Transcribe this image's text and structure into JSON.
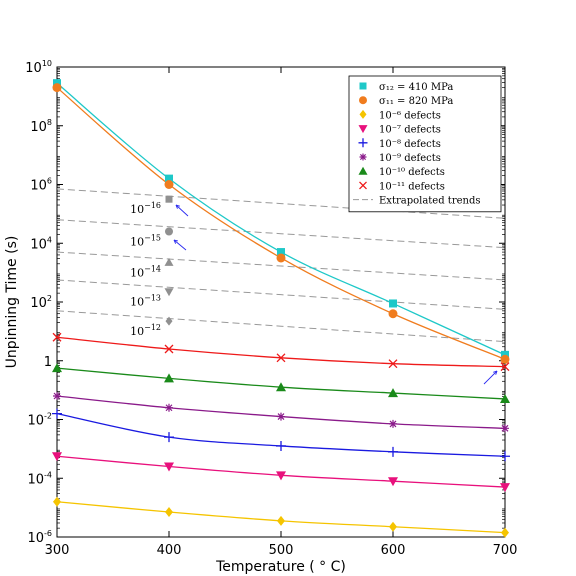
{
  "chart_data": {
    "type": "line",
    "title": "",
    "xlabel": "Temperature ( ° C)",
    "ylabel": "Unpinning Time (s)",
    "xlim": [
      300,
      700
    ],
    "ylim_log10": [
      -6,
      10
    ],
    "y_scale": "log",
    "x_ticks": [
      "300",
      "400",
      "500",
      "600",
      "700"
    ],
    "y_tick_exponents": [
      -6,
      -4,
      -2,
      0,
      2,
      4,
      6,
      8,
      10
    ],
    "y_tick_special": {
      "0": "1"
    },
    "legend_placement": "top-right",
    "colors": {
      "s12": "#1ec8c8",
      "s11": "#f07c1e",
      "d6": "#f5c400",
      "d7": "#e8107c",
      "d8": "#1a1ae0",
      "d9": "#8a1a8a",
      "d10": "#1a8a1a",
      "d11": "#ee1a1a",
      "extrap": "#999999",
      "annot_marker": "#909090",
      "arrow": "#2a2af0"
    },
    "series": [
      {
        "key": "s12",
        "name": "σ₁₂ = 410 MPa",
        "marker": "square",
        "x": [
          300,
          400,
          500,
          600,
          700
        ],
        "log10y": [
          9.45,
          6.2,
          3.7,
          1.95,
          0.2
        ]
      },
      {
        "key": "s11",
        "name": "σ₁₁ = 820 MPa",
        "marker": "circle",
        "x": [
          300,
          400,
          500,
          600,
          700
        ],
        "log10y": [
          9.3,
          6.0,
          3.5,
          1.6,
          0.05
        ]
      },
      {
        "key": "d6",
        "name": "10⁻⁶ defects",
        "marker": "diamond",
        "x": [
          300,
          400,
          500,
          600,
          700
        ],
        "log10y": [
          -4.8,
          -5.15,
          -5.45,
          -5.65,
          -5.85
        ]
      },
      {
        "key": "d7",
        "name": "10⁻⁷ defects",
        "marker": "tri-down",
        "x": [
          300,
          400,
          500,
          600,
          700
        ],
        "log10y": [
          -3.25,
          -3.6,
          -3.9,
          -4.1,
          -4.3
        ]
      },
      {
        "key": "d8",
        "name": "10⁻⁸ defects",
        "marker": "plus",
        "x": [
          300,
          400,
          500,
          600,
          700
        ],
        "log10y": [
          -1.8,
          -2.6,
          -2.9,
          -3.1,
          -3.25
        ]
      },
      {
        "key": "d9",
        "name": "10⁻⁹ defects",
        "marker": "star",
        "x": [
          300,
          400,
          500,
          600,
          700
        ],
        "log10y": [
          -1.2,
          -1.6,
          -1.9,
          -2.15,
          -2.3
        ]
      },
      {
        "key": "d10",
        "name": "10⁻¹⁰ defects",
        "marker": "tri-up",
        "x": [
          300,
          400,
          500,
          600,
          700
        ],
        "log10y": [
          -0.25,
          -0.6,
          -0.9,
          -1.1,
          -1.3
        ]
      },
      {
        "key": "d11",
        "name": "10⁻¹¹ defects",
        "marker": "x",
        "x": [
          300,
          400,
          500,
          600,
          700
        ],
        "log10y": [
          0.8,
          0.4,
          0.1,
          -0.1,
          -0.2
        ]
      },
      {
        "key": "extrap",
        "name": "Extrapolated trends",
        "marker": "dash",
        "x": [],
        "log10y": []
      }
    ],
    "extrapolated_trends": [
      {
        "x": [
          300,
          700
        ],
        "log10y": [
          5.85,
          4.85
        ]
      },
      {
        "x": [
          300,
          700
        ],
        "log10y": [
          4.8,
          3.85
        ]
      },
      {
        "x": [
          300,
          700
        ],
        "log10y": [
          3.7,
          2.75
        ]
      },
      {
        "x": [
          300,
          700
        ],
        "log10y": [
          2.75,
          1.75
        ]
      },
      {
        "x": [
          300,
          700
        ],
        "log10y": [
          1.7,
          0.65
        ]
      }
    ],
    "annotations": [
      {
        "base": "10",
        "exp": "−16",
        "marker": "square",
        "x": 400,
        "log10y": 5.5
      },
      {
        "base": "10",
        "exp": "−15",
        "marker": "circle",
        "x": 400,
        "log10y": 4.4
      },
      {
        "base": "10",
        "exp": "−14",
        "marker": "tri-up",
        "x": 400,
        "log10y": 3.35
      },
      {
        "base": "10",
        "exp": "−13",
        "marker": "tri-down",
        "x": 400,
        "log10y": 2.35
      },
      {
        "base": "10",
        "exp": "−12",
        "marker": "diamond",
        "x": 400,
        "log10y": 1.35
      }
    ]
  }
}
